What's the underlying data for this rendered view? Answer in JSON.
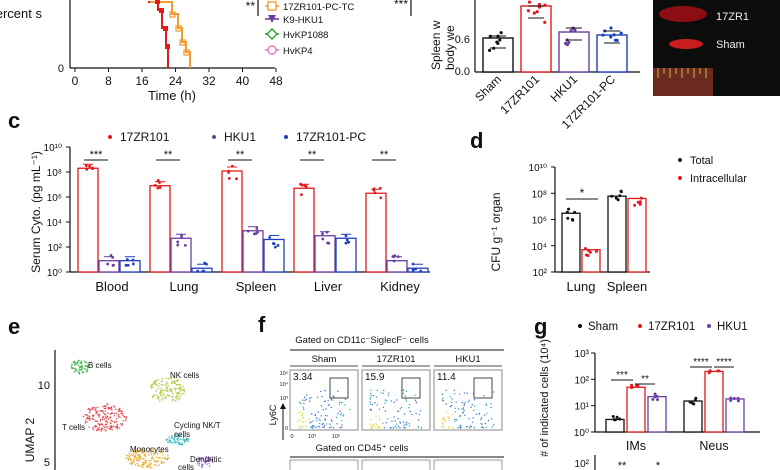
{
  "panel_labels": {
    "c": "c",
    "d": "d",
    "e": "e",
    "f": "f",
    "g": "g"
  },
  "panel_a": {
    "ylabel_fragment": "Percent s",
    "x_ticks": [
      "0",
      "8",
      "16",
      "24",
      "32",
      "40",
      "48"
    ],
    "xlabel": "Time (h)",
    "y_ticks": [
      "0"
    ],
    "stars": [
      "**",
      "***"
    ],
    "legend": [
      "17ZR101-PC-TC",
      "K9-HKU1",
      "HvKP1088",
      "HvKP4"
    ],
    "colors": {
      "red": "#e31a1c",
      "orange": "#f39c32",
      "purple": "#6a3fa0",
      "green": "#2ca02c",
      "pink": "#e377c2"
    }
  },
  "panel_b": {
    "ylabel_line1": "Spleen w",
    "ylabel_line2": "body we",
    "y_ticks": [
      "0.0",
      "0.6"
    ],
    "categories": [
      "Sham",
      "17ZR101",
      "HKU1",
      "17ZR101-PC"
    ]
  },
  "panel_b_photo": {
    "labels": [
      "17ZR1",
      "Sham"
    ]
  },
  "chart_data": [
    {
      "type": "bar",
      "title": "",
      "ylabel": "Serum Cyto. (pg mL⁻¹)",
      "xlabel": "",
      "yscale": "log",
      "ylim": [
        1,
        10000000000
      ],
      "y_ticks": [
        "10⁰",
        "10²",
        "10⁴",
        "10⁶",
        "10⁸",
        "10¹⁰"
      ],
      "categories": [
        "Blood",
        "Lung",
        "Spleen",
        "Liver",
        "Kidney"
      ],
      "series": [
        {
          "name": "17ZR101",
          "color": "#e31a1c",
          "values": [
            200000000,
            8000000,
            120000000,
            5000000,
            2000000
          ]
        },
        {
          "name": "HKU1",
          "color": "#6a3fa0",
          "values": [
            8,
            500,
            2000,
            800,
            8
          ]
        },
        {
          "name": "17ZR101-PC",
          "color": "#1f3fbf",
          "values": [
            8,
            2,
            400,
            500,
            2
          ]
        }
      ],
      "annotations": [
        "***",
        "**",
        "**",
        "**",
        "**"
      ]
    },
    {
      "type": "bar",
      "title": "",
      "ylabel": "CFU g⁻¹ organ",
      "xlabel": "",
      "yscale": "log",
      "ylim": [
        100,
        10000000000
      ],
      "y_ticks": [
        "10²",
        "10⁴",
        "10⁶",
        "10⁸",
        "10¹⁰"
      ],
      "categories": [
        "Lung",
        "Spleen"
      ],
      "series": [
        {
          "name": "Total",
          "color": "#111111",
          "values": [
            3000000,
            60000000
          ]
        },
        {
          "name": "Intracellular",
          "color": "#e31a1c",
          "values": [
            5000,
            40000000
          ]
        }
      ],
      "annotations": [
        "*"
      ]
    },
    {
      "type": "bar",
      "title": "",
      "ylabel": "# of indicated cells (10⁴)",
      "xlabel": "",
      "yscale": "log",
      "ylim": [
        1,
        1000
      ],
      "y_ticks": [
        "10⁰",
        "10¹",
        "10²",
        "10³"
      ],
      "categories": [
        "IMs",
        "Neus"
      ],
      "series": [
        {
          "name": "Sham",
          "color": "#111111",
          "values": [
            3,
            15
          ]
        },
        {
          "name": "17ZR101",
          "color": "#e31a1c",
          "values": [
            50,
            200
          ]
        },
        {
          "name": "HKU1",
          "color": "#6a3fa0",
          "values": [
            22,
            18
          ]
        }
      ],
      "annotations": [
        "***",
        "**",
        "****",
        "****"
      ],
      "next_panel_tick": "10²",
      "next_panel_stars": [
        "**",
        "*"
      ]
    }
  ],
  "panel_e": {
    "ylabel": "UMAP 2",
    "y_ticks": [
      "10",
      "5"
    ],
    "clusters": [
      "B cells",
      "NK cells",
      "T cells",
      "Cycling NK/T",
      "cells",
      "Monocytes",
      "Dendritic",
      "cells"
    ]
  },
  "panel_f": {
    "gate_top": "Gated on CD11c⁻SiglecF⁻ cells",
    "gate_bottom": "Gated on CD45⁺ cells",
    "columns": [
      "Sham",
      "17ZR101",
      "HKU1"
    ],
    "percentages": [
      "3.34",
      "15.9",
      "11.4"
    ],
    "ylabel": "Ly6C",
    "y_ticks": [
      "10⁵",
      "10⁴",
      "10³",
      "0"
    ],
    "x_ticks": [
      "0",
      "10³",
      "10⁵"
    ]
  }
}
